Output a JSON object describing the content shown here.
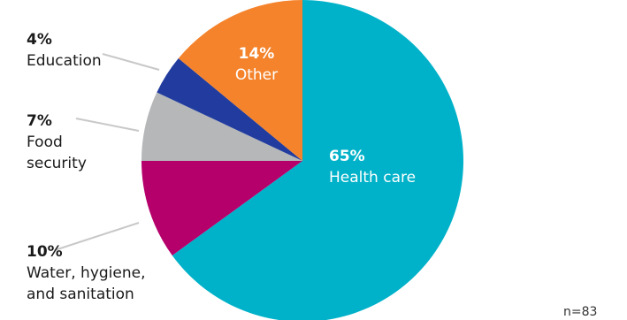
{
  "chart_data": {
    "type": "pie",
    "start": "12 o'clock, clockwise",
    "slices": [
      {
        "label": "Health care",
        "value": 65,
        "value_label": "65%",
        "color": "#00b2c9",
        "label_lines": [
          "Health care"
        ]
      },
      {
        "label": "Water, hygiene, and sanitation",
        "value": 10,
        "value_label": "10%",
        "color": "#b5006b",
        "label_lines": [
          "Water, hygiene,",
          "and sanitation"
        ]
      },
      {
        "label": "Food security",
        "value": 7,
        "value_label": "7%",
        "color": "#b5b7b9",
        "label_lines": [
          "Food",
          "security"
        ]
      },
      {
        "label": "Education",
        "value": 4,
        "value_label": "4%",
        "color": "#213c9e",
        "label_lines": [
          "Education"
        ]
      },
      {
        "label": "Other",
        "value": 14,
        "value_label": "14%",
        "color": "#f4832c",
        "label_lines": [
          "Other"
        ]
      }
    ],
    "note": "n=83"
  }
}
